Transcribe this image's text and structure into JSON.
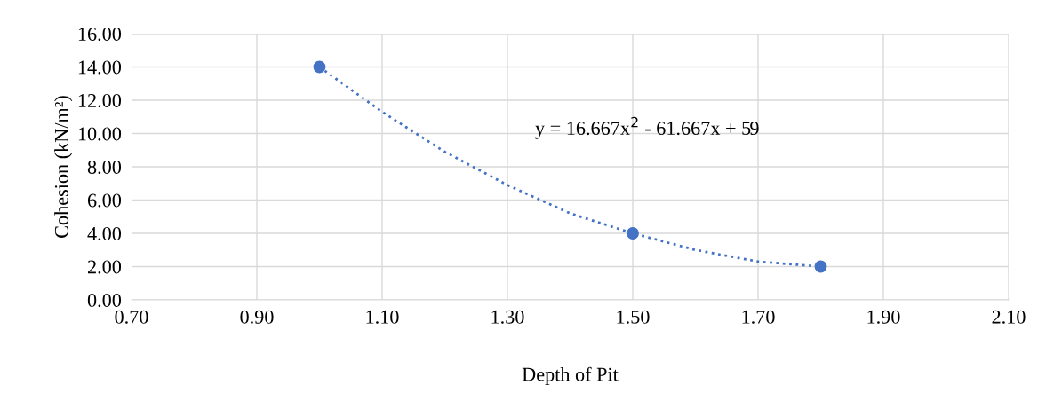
{
  "chart_data": {
    "type": "scatter",
    "xlabel": "Depth of Pit",
    "ylabel": "Cohesion (kN/m²)",
    "series": [
      {
        "color": "#4472c4",
        "x": [
          1.0,
          1.5,
          1.8
        ],
        "values": [
          14,
          4,
          2
        ],
        "marker": "circle"
      },
      {
        "type": "line",
        "color": "#4472c4",
        "x": [
          1.0,
          1.1,
          1.2,
          1.3,
          1.4,
          1.5,
          1.6,
          1.7,
          1.8
        ],
        "values": [
          14,
          11.3,
          8.9,
          6.9,
          5.2,
          4.0,
          3.0,
          2.3,
          2.0
        ],
        "line_style": "dotted",
        "marker": "none"
      }
    ],
    "annotations": [
      "y = 16.667x$^{2}$ - 61.667x + 59"
    ],
    "xlim": [
      0.7,
      2.1
    ],
    "xticks": [
      {
        "value": 0.7,
        "label": "0.70"
      },
      {
        "value": 0.9,
        "label": "0.90"
      },
      {
        "value": 1.1,
        "label": "1.10"
      },
      {
        "value": 1.3,
        "label": "1.30"
      },
      {
        "value": 1.5,
        "label": "1.50"
      },
      {
        "value": 1.7,
        "label": "1.70"
      },
      {
        "value": 1.9,
        "label": "1.90"
      },
      {
        "value": 2.1,
        "label": "2.10"
      }
    ],
    "ylim": [
      0,
      16
    ],
    "yticks": [
      {
        "value": 0,
        "label": "0.00"
      },
      {
        "value": 2,
        "label": "2.00"
      },
      {
        "value": 4,
        "label": "4.00"
      },
      {
        "value": 6,
        "label": "6.00"
      },
      {
        "value": 8,
        "label": "8.00"
      },
      {
        "value": 10,
        "label": "10.00"
      },
      {
        "value": 12,
        "label": "12.00"
      },
      {
        "value": 14,
        "label": "14.00"
      },
      {
        "value": 16,
        "label": "16.00"
      }
    ],
    "grid": true,
    "legend": false
  }
}
